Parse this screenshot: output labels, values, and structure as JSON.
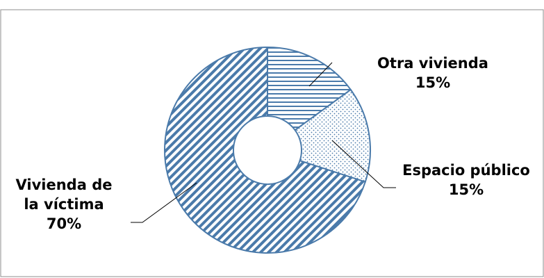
{
  "chart_data": {
    "type": "pie",
    "variant": "donut",
    "title": "",
    "slices": [
      {
        "label_lines": [
          "Otra vivienda"
        ],
        "pct_label": "15%",
        "value": 15,
        "pattern": "horizontal-lines"
      },
      {
        "label_lines": [
          "Espacio público"
        ],
        "pct_label": "15%",
        "value": 15,
        "pattern": "dots"
      },
      {
        "label_lines": [
          "Vivienda de",
          "la víctima"
        ],
        "pct_label": "70%",
        "value": 70,
        "pattern": "diagonal-lines"
      }
    ],
    "legend": "none",
    "colors": {
      "stroke": "#4a7aaa",
      "fill": "#4a7aaa",
      "leader": "#000000"
    }
  }
}
